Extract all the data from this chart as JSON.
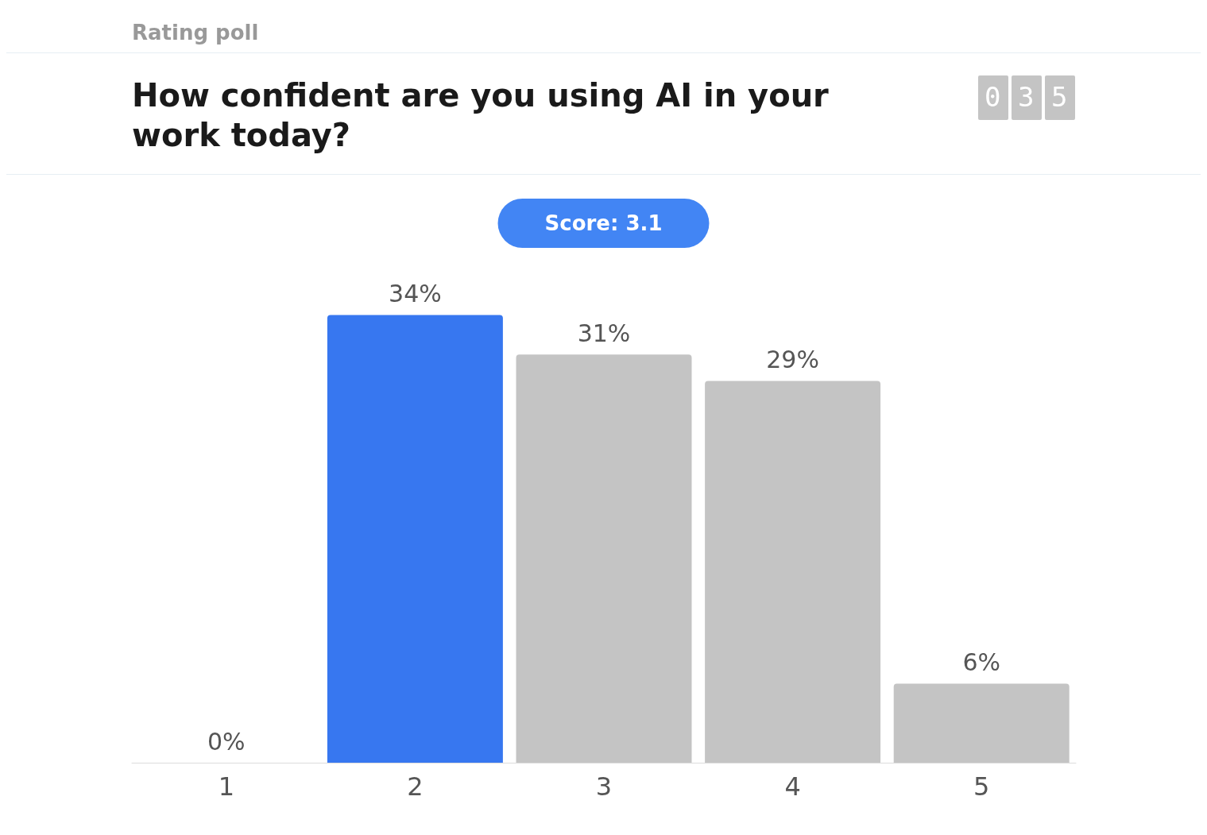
{
  "chart_data": {
    "type": "bar",
    "subtitle": "Rating poll",
    "title": "How confident are you using AI in your work today?",
    "categories": [
      "1",
      "2",
      "3",
      "4",
      "5"
    ],
    "values": [
      0,
      34,
      31,
      29,
      6
    ],
    "colors": [
      "#c4c4c4",
      "#3777f0",
      "#c4c4c4",
      "#c4c4c4",
      "#c4c4c4"
    ],
    "data_labels": true,
    "value_labels": [
      "0%",
      "34%",
      "31%",
      "29%",
      "6%"
    ],
    "annotations": [
      "035",
      "Score: 3.1"
    ]
  }
}
